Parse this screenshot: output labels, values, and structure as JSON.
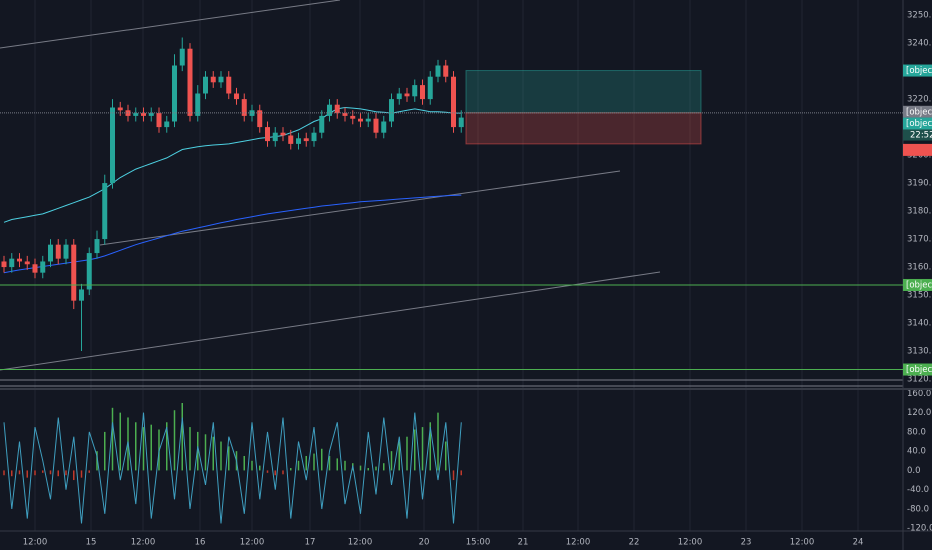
{
  "chart_data": [
    {
      "type": "candlestick",
      "up_color": "#26a69a",
      "down_color": "#ef5350",
      "ylim": [
        3116.8,
        3255.4
      ],
      "yticks": [
        {
          "value": 3250,
          "label": "3250.0"
        },
        {
          "value": 3240,
          "label": "3240.0"
        },
        {
          "value": 3220,
          "label": "3220.0"
        },
        {
          "value": 3200,
          "label": "3200.0"
        },
        {
          "value": 3190,
          "label": "3190.0"
        },
        {
          "value": 3180,
          "label": "3180.0"
        },
        {
          "value": 3170,
          "label": "3170.0"
        },
        {
          "value": 3160,
          "label": "3160.0"
        },
        {
          "value": 3150,
          "label": "3150.0"
        },
        {
          "value": 3140,
          "label": "3140.0"
        },
        {
          "value": 3130,
          "label": "3130.0"
        },
        {
          "value": 3120,
          "label": "3120.0"
        }
      ],
      "x_labels": [
        "12:00",
        "15",
        "12:00",
        "16",
        "12:00",
        "17",
        "12:00",
        "20",
        "15:00",
        "21",
        "12:00",
        "22",
        "12:00",
        "23",
        "12:00",
        "24"
      ],
      "open": [
        3162,
        3160,
        3163,
        3162,
        3161,
        3158,
        3162,
        3168,
        3163,
        3168,
        3148,
        3152,
        3165,
        3170,
        3190,
        3217,
        3216,
        3214,
        3215,
        3214,
        3215,
        3210,
        3212,
        3232,
        3238,
        3214,
        3222,
        3228,
        3226,
        3228,
        3222,
        3220,
        3214,
        3216,
        3210,
        3205,
        3208,
        3207,
        3204,
        3206,
        3205,
        3208,
        3214,
        3218,
        3215,
        3214,
        3213,
        3212,
        3213,
        3208,
        3212,
        3220,
        3222,
        3221,
        3225,
        3220,
        3228,
        3232,
        3228,
        3210
      ],
      "high": [
        3164,
        3165,
        3165,
        3164,
        3163,
        3164,
        3170,
        3170,
        3170,
        3170,
        3154,
        3167,
        3173,
        3193,
        3220,
        3219,
        3218,
        3217,
        3217,
        3217,
        3217,
        3214,
        3236,
        3242,
        3240,
        3225,
        3230,
        3230,
        3230,
        3230,
        3224,
        3222,
        3218,
        3218,
        3212,
        3210,
        3210,
        3209,
        3208,
        3208,
        3210,
        3216,
        3220,
        3220,
        3217,
        3216,
        3215,
        3215,
        3215,
        3214,
        3222,
        3224,
        3224,
        3227,
        3227,
        3230,
        3234,
        3234,
        3230,
        3216
      ],
      "low": [
        3158,
        3158,
        3160,
        3159,
        3156,
        3156,
        3160,
        3161,
        3161,
        3145,
        3130,
        3150,
        3163,
        3168,
        3188,
        3214,
        3212,
        3212,
        3212,
        3212,
        3208,
        3208,
        3210,
        3230,
        3212,
        3212,
        3220,
        3224,
        3224,
        3220,
        3218,
        3212,
        3212,
        3208,
        3203,
        3203,
        3205,
        3202,
        3202,
        3203,
        3203,
        3206,
        3212,
        3213,
        3212,
        3211,
        3210,
        3210,
        3206,
        3206,
        3210,
        3218,
        3219,
        3219,
        3218,
        3218,
        3226,
        3226,
        3208,
        3208
      ],
      "close": [
        3160,
        3163,
        3162,
        3161,
        3158,
        3162,
        3168,
        3163,
        3168,
        3148,
        3152,
        3165,
        3170,
        3190,
        3217,
        3216,
        3214,
        3215,
        3214,
        3215,
        3210,
        3212,
        3232,
        3238,
        3214,
        3222,
        3228,
        3226,
        3228,
        3222,
        3220,
        3214,
        3216,
        3210,
        3205,
        3208,
        3207,
        3204,
        3206,
        3205,
        3208,
        3214,
        3218,
        3215,
        3214,
        3213,
        3212,
        3213,
        3208,
        3212,
        3220,
        3222,
        3221,
        3225,
        3220,
        3228,
        3232,
        3228,
        3210,
        3213.4
      ],
      "series": [
        {
          "color": "#4dd0e1",
          "values": [
            3176,
            3177,
            3177.5,
            3178,
            3178.5,
            3179,
            3180,
            3181,
            3182,
            3183,
            3184,
            3185,
            3186.5,
            3188,
            3190,
            3192,
            3193.5,
            3195,
            3196,
            3197,
            3198,
            3199,
            3200.5,
            3202,
            3202.5,
            3203,
            3203.3,
            3203.6,
            3203.8,
            3204,
            3204.5,
            3205,
            3205.5,
            3206,
            3206.3,
            3206.6,
            3207,
            3208,
            3209,
            3210.5,
            3212,
            3213,
            3215,
            3216.5,
            3217,
            3216.8,
            3216.5,
            3216,
            3215.5,
            3215.3,
            3215,
            3215.5,
            3216,
            3216.5,
            3216,
            3215.5,
            3215.5,
            3215.3,
            3215,
            3215
          ]
        },
        {
          "color": "#2962ff",
          "values": [
            3158,
            3158.5,
            3159,
            3159.4,
            3159.8,
            3160.2,
            3160.6,
            3161,
            3161.4,
            3161.8,
            3162.2,
            3162.6,
            3163.2,
            3164,
            3165,
            3166,
            3167,
            3168,
            3168.8,
            3169.6,
            3170.4,
            3171.2,
            3172,
            3172.8,
            3173.4,
            3174,
            3174.6,
            3175.2,
            3175.8,
            3176.4,
            3177,
            3177.5,
            3178,
            3178.5,
            3179,
            3179.4,
            3179.8,
            3180.2,
            3180.6,
            3181,
            3181.4,
            3181.8,
            3182.1,
            3182.4,
            3182.7,
            3183,
            3183.3,
            3183.5,
            3183.7,
            3183.9,
            3184.1,
            3184.3,
            3184.5,
            3184.7,
            3184.9,
            3185.1,
            3185.3,
            3185.5,
            3185.6,
            3185.7
          ]
        }
      ],
      "markers": [
        {
          "value": 3230.2,
          "color": "#26a69a",
          "role": "target"
        },
        {
          "value": 3215.1,
          "color": "#787b86",
          "role": "entry"
        },
        {
          "value": 3213.4,
          "color": "#26a69a",
          "role": "last"
        },
        {
          "value": {
            "value": 3204,
            "label": "3204.0"
          },
          "color": "#ef5350",
          "role": "stop"
        },
        {
          "value": 3153.6,
          "color": "#4caf50",
          "role": "level"
        },
        {
          "value": 3123.4,
          "color": "#4caf50",
          "role": "level"
        }
      ],
      "countdown": "22:52"
    },
    {
      "type": "oscillator",
      "ylim": [
        -123.7,
        167
      ],
      "yticks": [
        {
          "value": 160,
          "label": "160.0"
        },
        {
          "value": 120,
          "label": "120.0"
        },
        {
          "value": 80,
          "label": "80.0"
        },
        {
          "value": 40,
          "label": "40.0"
        },
        {
          "value": 0,
          "label": "0.0"
        },
        {
          "value": -40,
          "label": "-40.0"
        },
        {
          "value": -80,
          "label": "-80.0"
        },
        {
          "value": -120,
          "label": "-120.0"
        }
      ],
      "line_color": "#3f9fc0",
      "up_color": "#4caf50",
      "down_color": "#c0392b",
      "line": [
        100,
        -80,
        60,
        -100,
        90,
        20,
        -60,
        110,
        -40,
        70,
        -110,
        80,
        30,
        -90,
        100,
        -20,
        60,
        -70,
        120,
        -100,
        40,
        90,
        -60,
        110,
        -80,
        50,
        -30,
        100,
        -110,
        70,
        20,
        -90,
        100,
        -60,
        80,
        -40,
        110,
        -100,
        60,
        -20,
        90,
        -80,
        40,
        100,
        -70,
        10,
        -90,
        80,
        -50,
        110,
        -30,
        70,
        -100,
        120,
        -60,
        90,
        -20,
        100,
        -110,
        100
      ],
      "histogram": [
        -10,
        -12,
        -8,
        -15,
        -10,
        -5,
        -8,
        -12,
        -10,
        -20,
        -15,
        -5,
        40,
        80,
        130,
        120,
        110,
        100,
        90,
        95,
        85,
        100,
        125,
        140,
        90,
        80,
        75,
        70,
        60,
        50,
        40,
        30,
        20,
        10,
        -5,
        -10,
        -8,
        5,
        20,
        30,
        35,
        45,
        30,
        25,
        20,
        15,
        10,
        5,
        8,
        15,
        40,
        60,
        70,
        85,
        90,
        100,
        120,
        60,
        -20,
        -10
      ]
    }
  ]
}
